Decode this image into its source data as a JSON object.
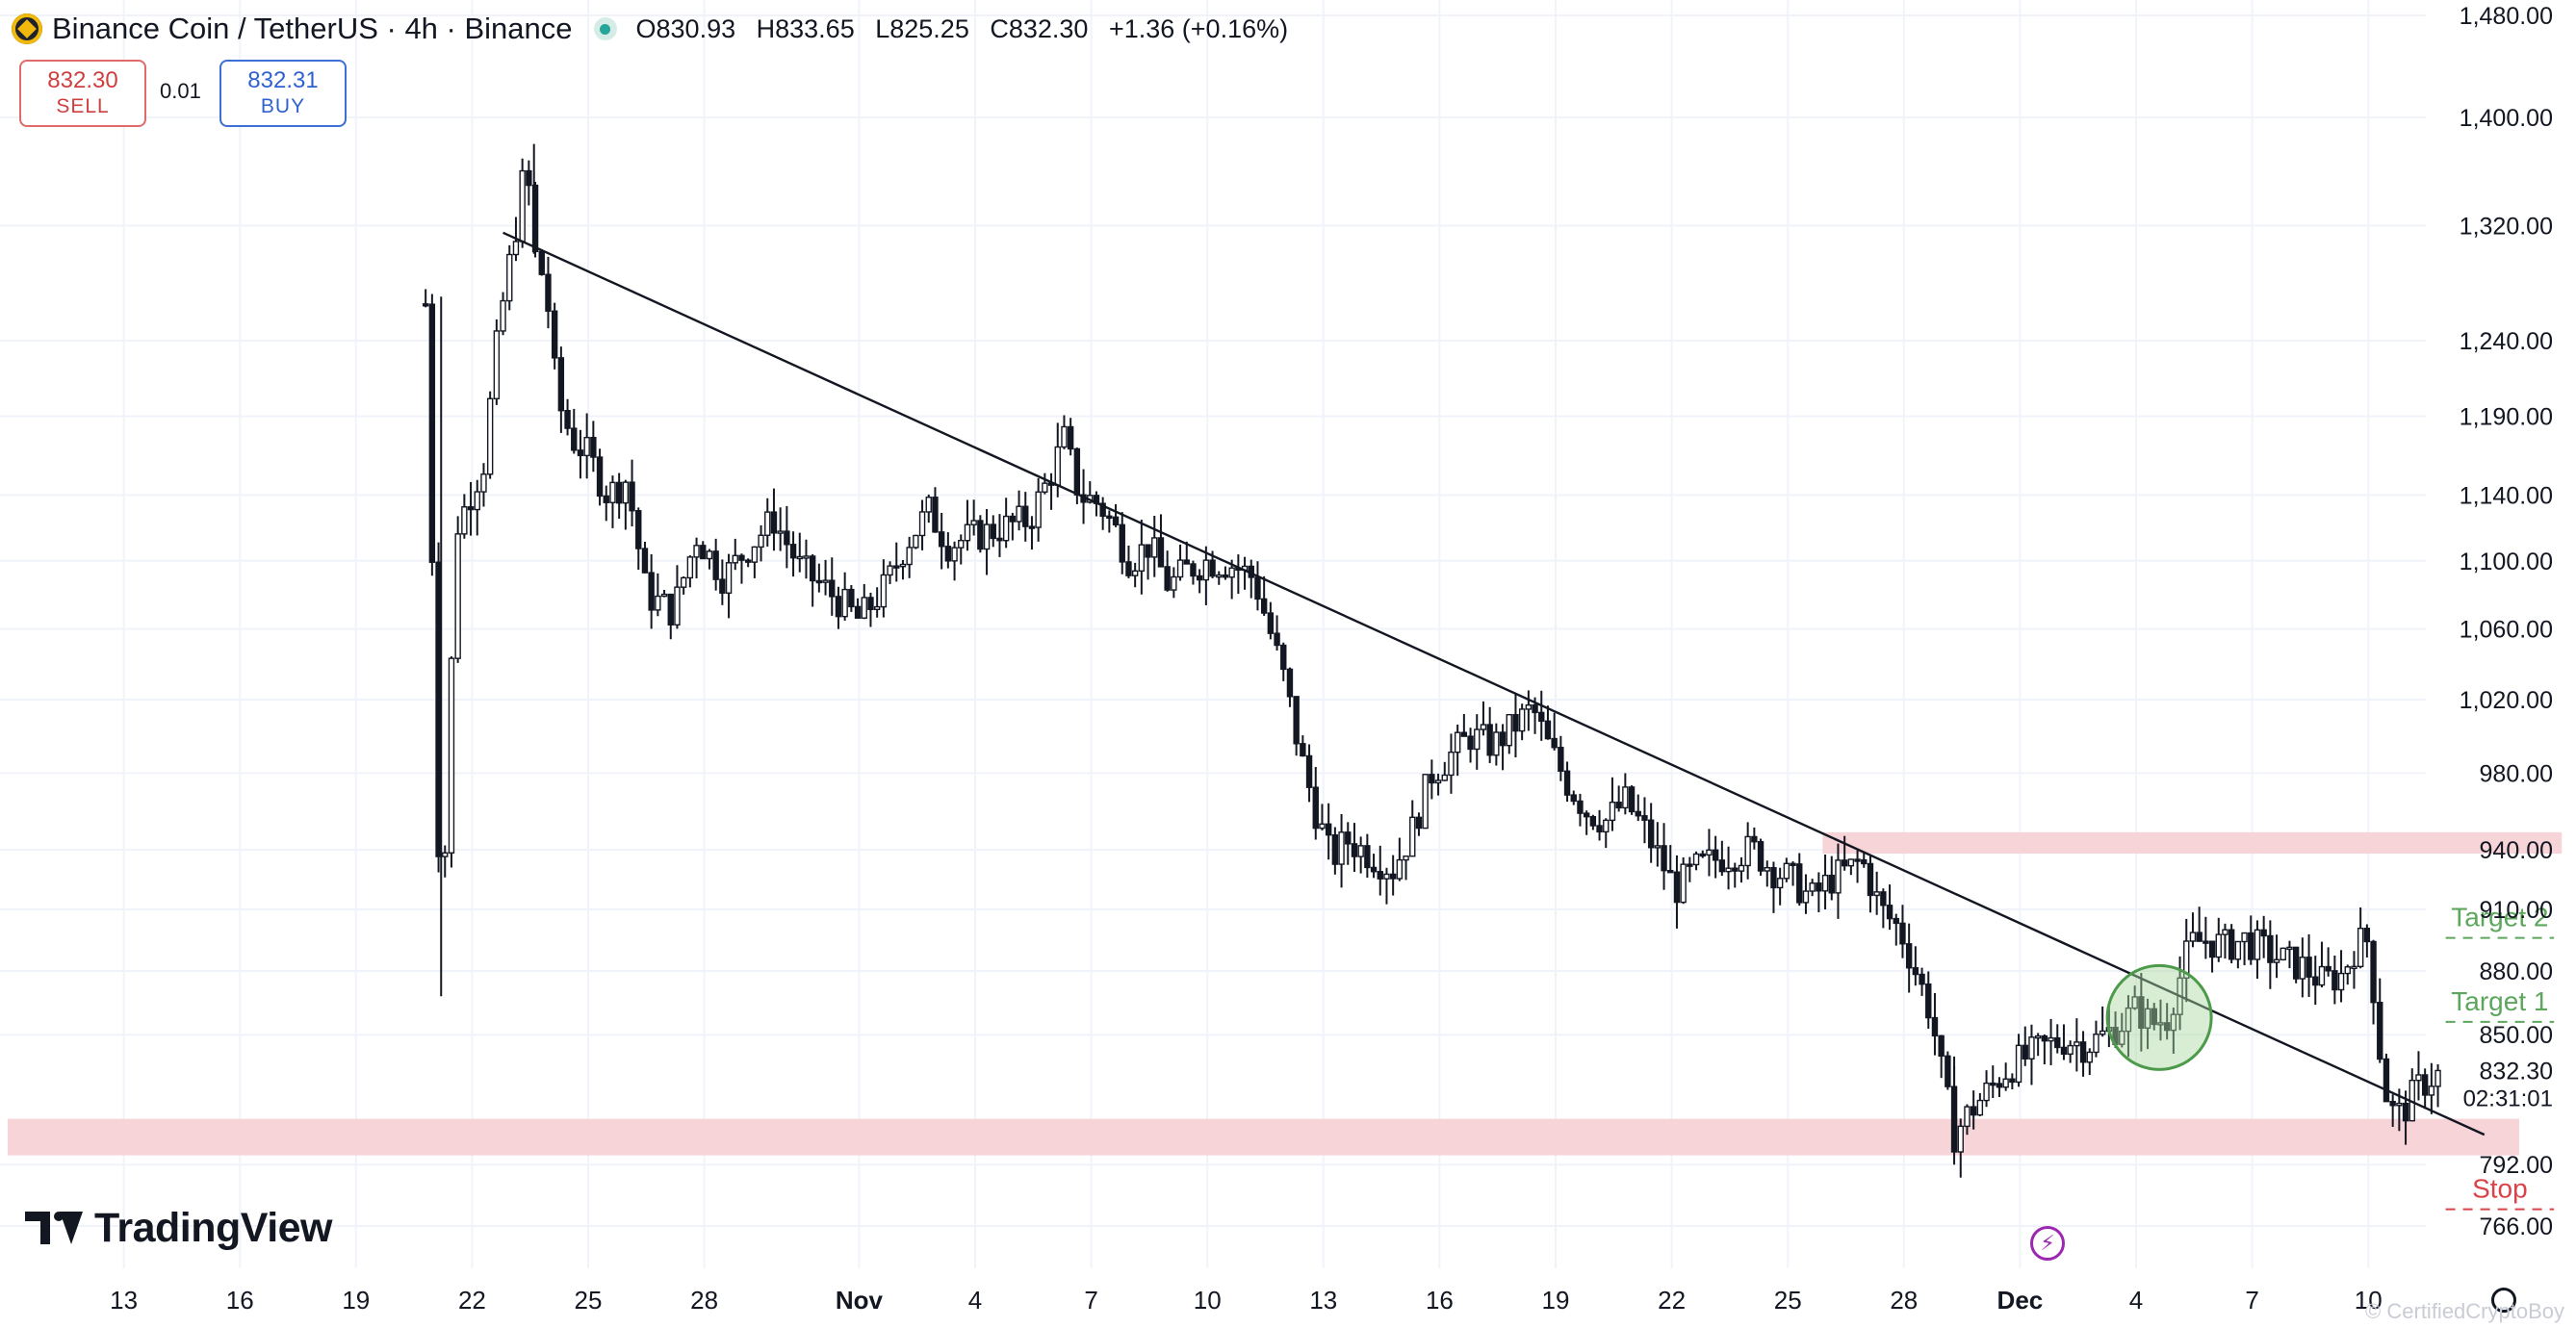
{
  "header": {
    "title": "Binance Coin / TetherUS · 4h · Binance",
    "open": "O830.93",
    "high": "H833.65",
    "low": "L825.25",
    "close": "C832.30",
    "change": "+1.36 (+0.16%)"
  },
  "trade": {
    "sell_price": "832.30",
    "sell_label": "SELL",
    "spread": "0.01",
    "buy_price": "832.31",
    "buy_label": "BUY"
  },
  "brand": {
    "name": "TradingView",
    "watermark": "© CertifiedCryptoBoy"
  },
  "colors": {
    "candle": "#131722",
    "zone": "#f7d4d8",
    "target": "#5da75d",
    "stop": "#d9434a",
    "circle_fill": "#a8d8a0",
    "circle_stroke": "#4c9a4a",
    "flash": "#9c27b0"
  },
  "chart_data": {
    "type": "candlestick",
    "title": "",
    "xlabel": "",
    "ylabel": "",
    "ylim": [
      752,
      1490
    ],
    "price_scale": "log",
    "grid": true,
    "x_tick_labels": [
      "13",
      "16",
      "19",
      "22",
      "25",
      "28",
      "Nov",
      "4",
      "7",
      "10",
      "13",
      "16",
      "19",
      "22",
      "25",
      "28",
      "Dec",
      "4",
      "7",
      "10"
    ],
    "y_tick_labels": [
      "1,480.00",
      "1,400.00",
      "1,320.00",
      "1,240.00",
      "1,190.00",
      "1,140.00",
      "1,100.00",
      "1,060.00",
      "1,020.00",
      "980.00",
      "940.00",
      "910.00",
      "880.00",
      "850.00",
      "792.00",
      "766.00"
    ],
    "y_tick_values": [
      1480,
      1400,
      1320,
      1240,
      1190,
      1140,
      1100,
      1060,
      1020,
      980,
      940,
      910,
      880,
      850,
      792,
      766
    ],
    "x_dates": [
      "Oct 13",
      "Oct 16",
      "Oct 19",
      "Oct 22",
      "Oct 25",
      "Oct 28",
      "Nov 1",
      "Nov 4",
      "Nov 7",
      "Nov 10",
      "Nov 13",
      "Nov 16",
      "Nov 19",
      "Nov 22",
      "Nov 25",
      "Nov 28",
      "Dec 1",
      "Dec 4",
      "Dec 7",
      "Dec 10"
    ],
    "path": [
      [
        10.8,
        1265
      ],
      [
        11.2,
        880
      ],
      [
        11.6,
        1120
      ],
      [
        12.3,
        1160
      ],
      [
        12.7,
        1250
      ],
      [
        13.2,
        1330
      ],
      [
        13.4,
        1370
      ],
      [
        13.6,
        1300
      ],
      [
        13.9,
        1280
      ],
      [
        14.2,
        1200
      ],
      [
        14.6,
        1175
      ],
      [
        15.0,
        1165
      ],
      [
        15.5,
        1140
      ],
      [
        16.0,
        1150
      ],
      [
        16.5,
        1080
      ],
      [
        17.2,
        1070
      ],
      [
        17.8,
        1115
      ],
      [
        18.5,
        1090
      ],
      [
        19.2,
        1110
      ],
      [
        19.8,
        1125
      ],
      [
        20.5,
        1095
      ],
      [
        21.3,
        1080
      ],
      [
        22.0,
        1065
      ],
      [
        22.7,
        1085
      ],
      [
        23.2,
        1110
      ],
      [
        23.8,
        1130
      ],
      [
        24.3,
        1110
      ],
      [
        25.0,
        1115
      ],
      [
        25.7,
        1120
      ],
      [
        26.4,
        1125
      ],
      [
        26.9,
        1150
      ],
      [
        27.3,
        1175
      ],
      [
        27.7,
        1140
      ],
      [
        28.2,
        1135
      ],
      [
        28.6,
        1120
      ],
      [
        29.0,
        1100
      ],
      [
        29.5,
        1110
      ],
      [
        30.0,
        1085
      ],
      [
        30.5,
        1095
      ],
      [
        31.0,
        1100
      ],
      [
        31.6,
        1098
      ],
      [
        32.2,
        1090
      ],
      [
        32.6,
        1060
      ],
      [
        33.0,
        1030
      ],
      [
        33.4,
        990
      ],
      [
        33.8,
        960
      ],
      [
        34.2,
        935
      ],
      [
        34.6,
        945
      ],
      [
        35.0,
        940
      ],
      [
        35.4,
        935
      ],
      [
        35.8,
        930
      ],
      [
        36.3,
        950
      ],
      [
        36.8,
        980
      ],
      [
        37.3,
        990
      ],
      [
        37.8,
        1000
      ],
      [
        38.4,
        995
      ],
      [
        38.9,
        1005
      ],
      [
        39.4,
        1015
      ],
      [
        39.8,
        995
      ],
      [
        40.3,
        975
      ],
      [
        40.8,
        960
      ],
      [
        41.3,
        955
      ],
      [
        41.8,
        965
      ],
      [
        42.3,
        950
      ],
      [
        42.7,
        935
      ],
      [
        43.1,
        920
      ],
      [
        43.6,
        930
      ],
      [
        44.1,
        935
      ],
      [
        44.6,
        938
      ],
      [
        45.1,
        940
      ],
      [
        45.6,
        930
      ],
      [
        46.1,
        925
      ],
      [
        46.6,
        915
      ],
      [
        47.1,
        925
      ],
      [
        47.6,
        930
      ],
      [
        47.9,
        935
      ],
      [
        48.4,
        910
      ],
      [
        48.9,
        900
      ],
      [
        49.3,
        880
      ],
      [
        49.7,
        860
      ],
      [
        50.0,
        830
      ],
      [
        50.3,
        805
      ],
      [
        50.7,
        815
      ],
      [
        51.2,
        825
      ],
      [
        51.7,
        835
      ],
      [
        52.2,
        840
      ],
      [
        52.7,
        845
      ],
      [
        53.2,
        848
      ],
      [
        53.7,
        845
      ],
      [
        54.2,
        850
      ],
      [
        54.6,
        855
      ],
      [
        55.0,
        862
      ],
      [
        55.4,
        855
      ],
      [
        55.8,
        858
      ],
      [
        56.1,
        875
      ],
      [
        56.4,
        893
      ],
      [
        56.8,
        895
      ],
      [
        57.3,
        892
      ],
      [
        57.8,
        895
      ],
      [
        58.3,
        890
      ],
      [
        58.8,
        885
      ],
      [
        59.3,
        882
      ],
      [
        59.8,
        875
      ],
      [
        60.3,
        878
      ],
      [
        60.7,
        893
      ],
      [
        61.0,
        895
      ],
      [
        61.2,
        860
      ],
      [
        61.4,
        826
      ],
      [
        61.7,
        812
      ],
      [
        62.0,
        818
      ],
      [
        62.3,
        826
      ],
      [
        62.6,
        830
      ],
      [
        62.9,
        832.3
      ]
    ],
    "trendline": [
      [
        12.8,
        1315
      ],
      [
        64.0,
        805
      ]
    ],
    "zones": [
      {
        "from": 796,
        "to": 812,
        "x_start": 0,
        "x_end": 64.9
      },
      {
        "from": 938,
        "to": 949,
        "x_start": 46.9,
        "x_end": 66
      }
    ],
    "targets": [
      {
        "label": "Target 2",
        "price": 896,
        "x_start": 63,
        "x_end": 65.8
      },
      {
        "label": "Target 1",
        "price": 856,
        "x_start": 63,
        "x_end": 65.8
      },
      {
        "label": "Stop",
        "price": 773,
        "x_start": 63,
        "x_end": 65.8
      }
    ],
    "circle": {
      "x": 55.6,
      "price": 858
    },
    "last_price": {
      "price": "832.30",
      "countdown": "02:31:01",
      "value": 832.3
    }
  }
}
